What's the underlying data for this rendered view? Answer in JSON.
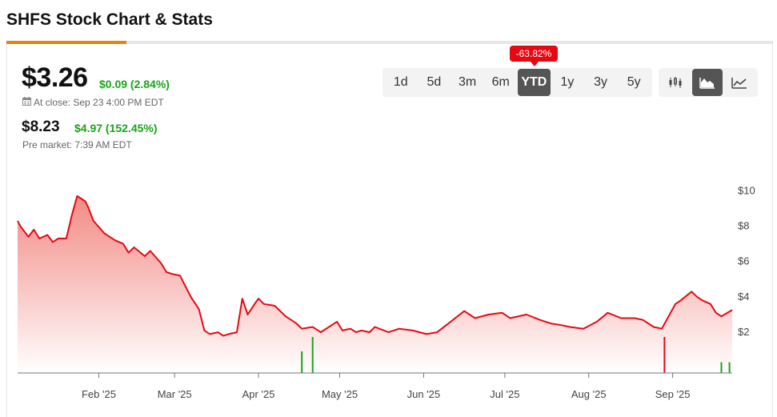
{
  "header": {
    "title": "SHFS Stock Chart & Stats"
  },
  "quote": {
    "price": "$3.26",
    "change": "$0.09 (2.84%)",
    "close_label": "At close: Sep 23 4:00 PM EDT",
    "premarket_price": "$8.23",
    "premarket_change": "$4.97 (152.45%)",
    "premarket_label": "Pre market: 7:39 AM EDT"
  },
  "controls": {
    "ranges": [
      "1d",
      "5d",
      "3m",
      "6m",
      "YTD",
      "1y",
      "3y",
      "5y"
    ],
    "selected_range": "YTD",
    "performance_badge": "-63.82%",
    "chart_types": [
      {
        "name": "candlestick-icon",
        "active": false
      },
      {
        "name": "area-chart-icon",
        "active": true
      },
      {
        "name": "line-chart-icon",
        "active": false
      }
    ]
  },
  "colors": {
    "line": "#e50914",
    "area_top": "#f2857f",
    "up": "#1aa31a",
    "down": "#e50914",
    "accent": "#e8820c"
  },
  "chart_data": {
    "type": "area",
    "x": [
      "2025-01-02",
      "2025-01-03",
      "2025-01-06",
      "2025-01-08",
      "2025-01-10",
      "2025-01-13",
      "2025-01-15",
      "2025-01-17",
      "2025-01-20",
      "2025-01-22",
      "2025-01-24",
      "2025-01-27",
      "2025-01-28",
      "2025-01-30",
      "2025-02-03",
      "2025-02-05",
      "2025-02-07",
      "2025-02-10",
      "2025-02-12",
      "2025-02-14",
      "2025-02-18",
      "2025-02-20",
      "2025-02-24",
      "2025-02-26",
      "2025-02-28",
      "2025-03-03",
      "2025-03-05",
      "2025-03-07",
      "2025-03-10",
      "2025-03-12",
      "2025-03-14",
      "2025-03-17",
      "2025-03-19",
      "2025-03-21",
      "2025-03-24",
      "2025-03-26",
      "2025-03-28",
      "2025-03-31",
      "2025-04-01",
      "2025-04-03",
      "2025-04-07",
      "2025-04-09",
      "2025-04-11",
      "2025-04-15",
      "2025-04-17",
      "2025-04-21",
      "2025-04-22",
      "2025-04-24",
      "2025-04-28",
      "2025-04-30",
      "2025-05-02",
      "2025-05-05",
      "2025-05-07",
      "2025-05-09",
      "2025-05-12",
      "2025-05-14",
      "2025-05-19",
      "2025-05-23",
      "2025-05-28",
      "2025-06-02",
      "2025-06-06",
      "2025-06-11",
      "2025-06-16",
      "2025-06-20",
      "2025-06-25",
      "2025-06-30",
      "2025-07-03",
      "2025-07-09",
      "2025-07-14",
      "2025-07-16",
      "2025-07-18",
      "2025-07-22",
      "2025-07-25",
      "2025-07-30",
      "2025-08-04",
      "2025-08-08",
      "2025-08-13",
      "2025-08-18",
      "2025-08-21",
      "2025-08-25",
      "2025-08-28",
      "2025-09-02",
      "2025-09-04",
      "2025-09-08",
      "2025-09-10",
      "2025-09-12",
      "2025-09-15",
      "2025-09-17",
      "2025-09-19",
      "2025-09-23"
    ],
    "series": [
      {
        "values": [
          8.3,
          8.0,
          7.4,
          7.8,
          7.3,
          7.5,
          7.1,
          7.3,
          7.3,
          8.6,
          9.7,
          9.4,
          9.1,
          8.3,
          7.6,
          7.4,
          7.2,
          7.0,
          6.5,
          6.8,
          6.3,
          6.6,
          5.9,
          5.4,
          5.3,
          5.2,
          4.6,
          4.0,
          3.3,
          2.1,
          1.9,
          2.0,
          1.8,
          1.9,
          2.0,
          3.9,
          3.0,
          3.7,
          3.9,
          3.6,
          3.5,
          3.2,
          2.9,
          2.5,
          2.2,
          2.3,
          2.2,
          2.0,
          2.4,
          2.6,
          2.1,
          2.2,
          2.0,
          2.1,
          2.0,
          2.3,
          2.0,
          2.2,
          2.1,
          1.9,
          2.0,
          2.6,
          3.2,
          2.8,
          3.0,
          3.1,
          2.8,
          3.0,
          2.7,
          2.6,
          2.5,
          2.4,
          2.3,
          2.2,
          2.6,
          3.1,
          2.8,
          2.8,
          2.7,
          2.3,
          2.2,
          3.6,
          3.8,
          4.3,
          4.0,
          3.8,
          3.6,
          3.1,
          2.9,
          3.26
        ]
      }
    ],
    "xticks": [
      {
        "label": "Feb '25",
        "date": "2025-02-01"
      },
      {
        "label": "Mar '25",
        "date": "2025-03-01"
      },
      {
        "label": "Apr '25",
        "date": "2025-04-01"
      },
      {
        "label": "May '25",
        "date": "2025-05-01"
      },
      {
        "label": "Jun '25",
        "date": "2025-06-01"
      },
      {
        "label": "Jul '25",
        "date": "2025-07-01"
      },
      {
        "label": "Aug '25",
        "date": "2025-08-01"
      },
      {
        "label": "Sep '25",
        "date": "2025-09-01"
      }
    ],
    "yticks": [
      {
        "label": "$2",
        "value": 2
      },
      {
        "label": "$4",
        "value": 4
      },
      {
        "label": "$6",
        "value": 6
      },
      {
        "label": "$8",
        "value": 8
      },
      {
        "label": "$10",
        "value": 10
      }
    ],
    "ylim": [
      -0.3,
      10.6
    ],
    "volume": [
      {
        "date": "2025-04-17",
        "value": 0.6,
        "dir": "up"
      },
      {
        "date": "2025-04-21",
        "value": 1.0,
        "dir": "up"
      },
      {
        "date": "2025-08-29",
        "value": 1.0,
        "dir": "down"
      },
      {
        "date": "2025-09-19",
        "value": 0.3,
        "dir": "up"
      },
      {
        "date": "2025-09-22",
        "value": 0.3,
        "dir": "up"
      }
    ],
    "grid": false,
    "legend": "none"
  }
}
